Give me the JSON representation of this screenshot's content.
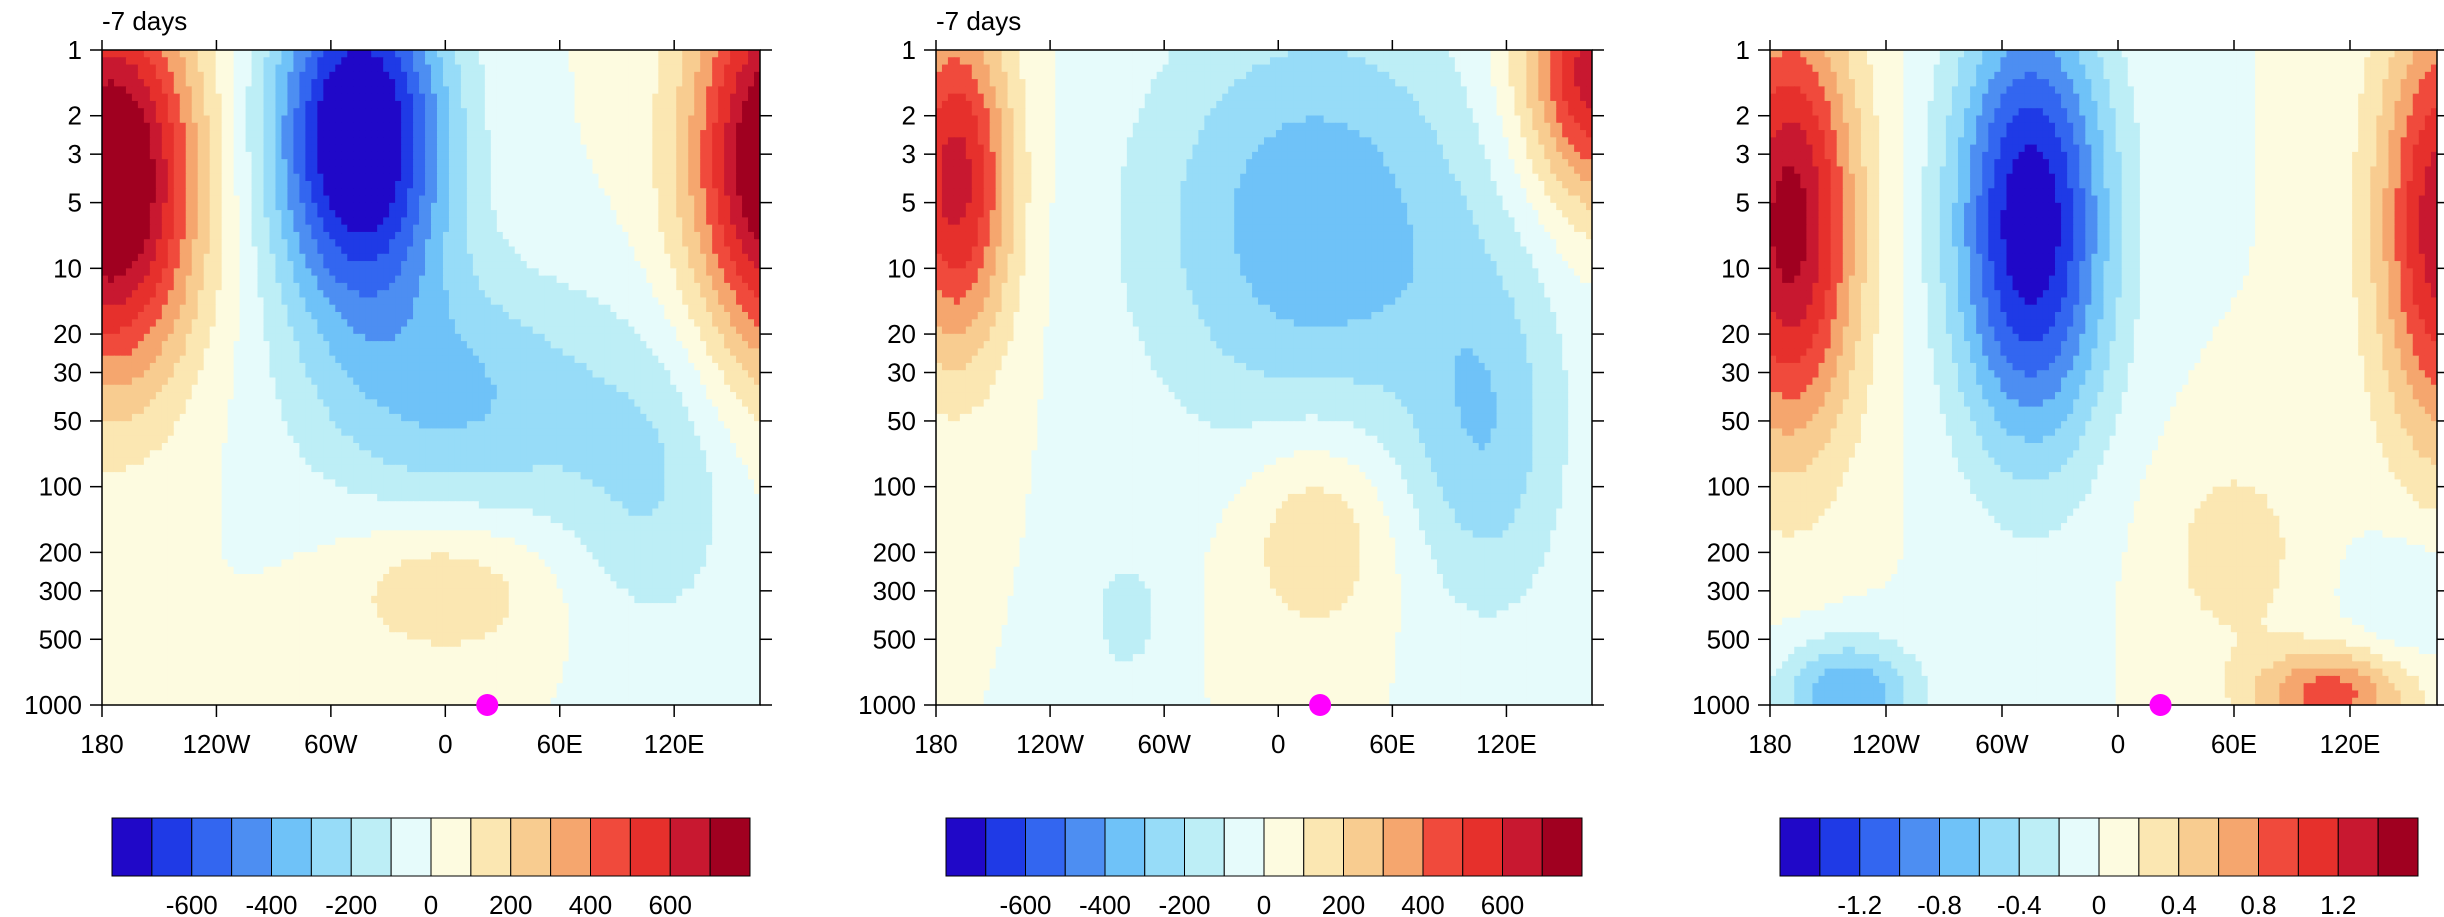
{
  "chart_data": [
    {
      "type": "heatmap",
      "subtitle": "-7 days",
      "xlabel": "",
      "ylabel": "",
      "x_ticks": [
        "180",
        "120W",
        "60W",
        "0",
        "60E",
        "120E"
      ],
      "y_ticks": [
        "1",
        "2",
        "3",
        "5",
        "10",
        "20",
        "30",
        "50",
        "100",
        "200",
        "300",
        "500",
        "1000"
      ],
      "y_scale": "log",
      "colorbar": {
        "colors": [
          "#2008c8",
          "#1f3ae6",
          "#3366f0",
          "#4d8ef2",
          "#6fc2f8",
          "#97dcf8",
          "#bdeef6",
          "#e6fbfb",
          "#fdfbe0",
          "#fbe7b2",
          "#f8cc90",
          "#f5a66e",
          "#f04a3c",
          "#e6302c",
          "#c81830",
          "#a00020"
        ],
        "labels": [
          "-600",
          "-400",
          "-200",
          "0",
          "200",
          "400",
          "600"
        ]
      },
      "marker": {
        "lon": 22,
        "p": 1000,
        "color": "#ff00ff"
      }
    },
    {
      "type": "heatmap",
      "subtitle": "-7 days",
      "xlabel": "",
      "ylabel": "",
      "x_ticks": [
        "180",
        "120W",
        "60W",
        "0",
        "60E",
        "120E"
      ],
      "y_ticks": [
        "1",
        "2",
        "3",
        "5",
        "10",
        "20",
        "30",
        "50",
        "100",
        "200",
        "300",
        "500",
        "1000"
      ],
      "y_scale": "log",
      "colorbar": {
        "colors": [
          "#2008c8",
          "#1f3ae6",
          "#3366f0",
          "#4d8ef2",
          "#6fc2f8",
          "#97dcf8",
          "#bdeef6",
          "#e6fbfb",
          "#fdfbe0",
          "#fbe7b2",
          "#f8cc90",
          "#f5a66e",
          "#f04a3c",
          "#e6302c",
          "#c81830",
          "#a00020"
        ],
        "labels": [
          "-600",
          "-400",
          "-200",
          "0",
          "200",
          "400",
          "600"
        ]
      },
      "marker": {
        "lon": 22,
        "p": 1000,
        "color": "#ff00ff"
      }
    },
    {
      "type": "heatmap",
      "subtitle": "",
      "xlabel": "",
      "ylabel": "",
      "x_ticks": [
        "180",
        "120W",
        "60W",
        "0",
        "60E",
        "120E"
      ],
      "y_ticks": [
        "1",
        "2",
        "3",
        "5",
        "10",
        "20",
        "30",
        "50",
        "100",
        "200",
        "300",
        "500",
        "1000"
      ],
      "y_scale": "log",
      "colorbar": {
        "colors": [
          "#2008c8",
          "#1f3ae6",
          "#3366f0",
          "#4d8ef2",
          "#6fc2f8",
          "#97dcf8",
          "#bdeef6",
          "#e6fbfb",
          "#fdfbe0",
          "#fbe7b2",
          "#f8cc90",
          "#f5a66e",
          "#f04a3c",
          "#e6302c",
          "#c81830",
          "#a00020"
        ],
        "labels": [
          "-1.2",
          "-0.8",
          "-0.4",
          "0",
          "0.4",
          "0.8",
          "1.2"
        ]
      },
      "marker": {
        "lon": 22,
        "p": 1000,
        "color": "#ff00ff"
      }
    }
  ]
}
